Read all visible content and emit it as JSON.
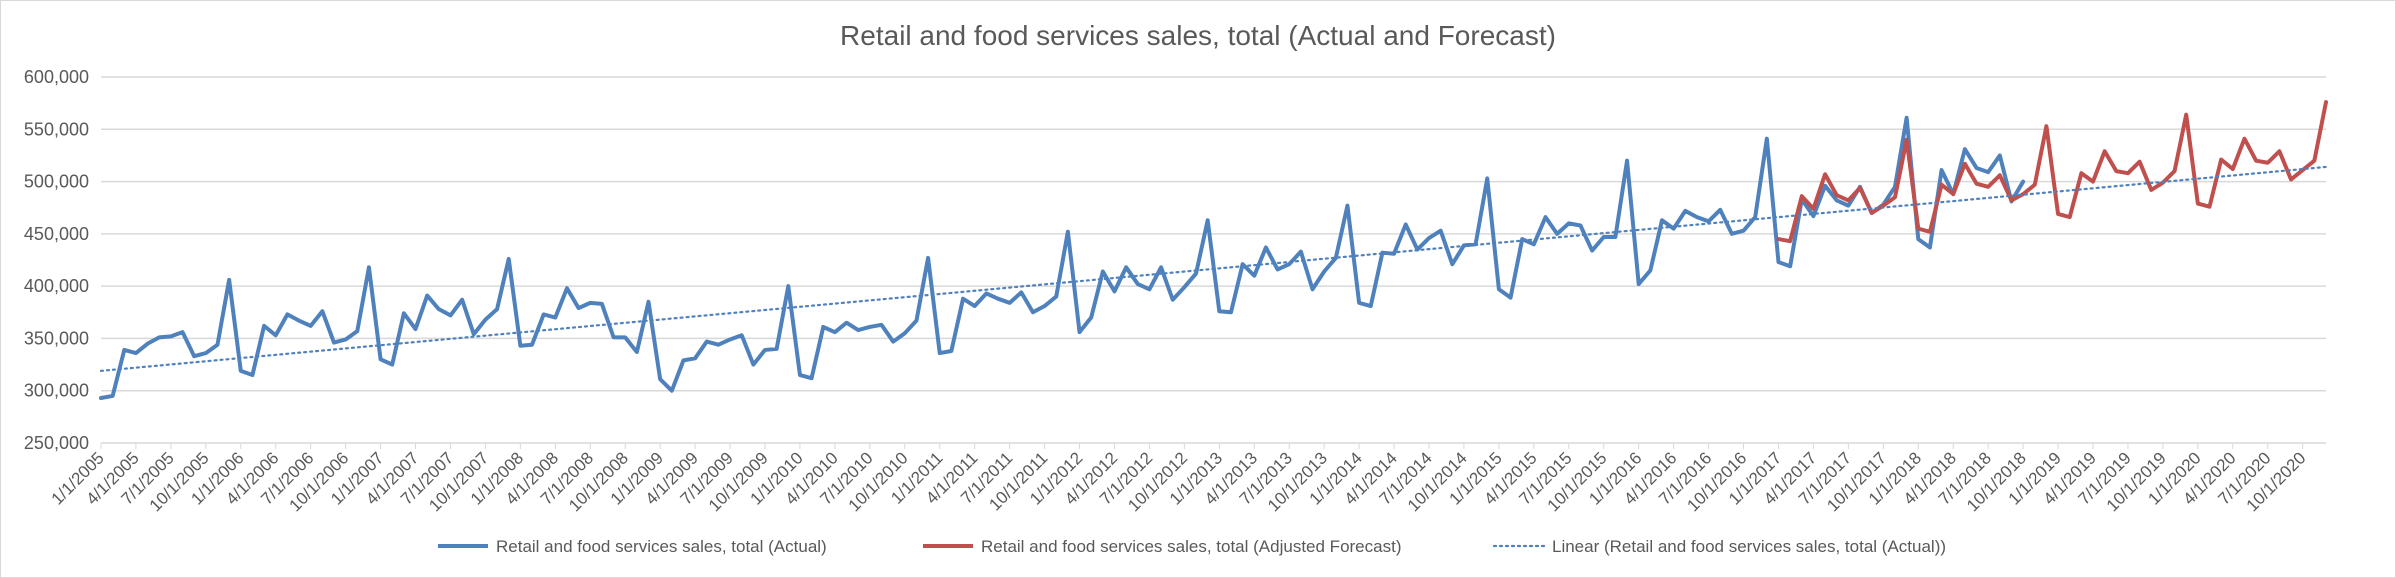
{
  "chart_data": {
    "type": "line",
    "title": "Retail and food services sales, total (Actual and Forecast)",
    "xlabel": "",
    "ylabel": "",
    "ylim": [
      250000,
      600000
    ],
    "yticks": [
      250000,
      300000,
      350000,
      400000,
      450000,
      500000,
      550000,
      600000
    ],
    "ytick_labels": [
      "250,000",
      "300,000",
      "350,000",
      "400,000",
      "450,000",
      "500,000",
      "550,000",
      "600,000"
    ],
    "x_start": "2005-01",
    "x_end": "2020-12",
    "xtick_labels": [
      "1/1/2005",
      "4/1/2005",
      "7/1/2005",
      "10/1/2005",
      "1/1/2006",
      "4/1/2006",
      "7/1/2006",
      "10/1/2006",
      "1/1/2007",
      "4/1/2007",
      "7/1/2007",
      "10/1/2007",
      "1/1/2008",
      "4/1/2008",
      "7/1/2008",
      "10/1/2008",
      "1/1/2009",
      "4/1/2009",
      "7/1/2009",
      "10/1/2009",
      "1/1/2010",
      "4/1/2010",
      "7/1/2010",
      "10/1/2010",
      "1/1/2011",
      "4/1/2011",
      "7/1/2011",
      "10/1/2011",
      "1/1/2012",
      "4/1/2012",
      "7/1/2012",
      "10/1/2012",
      "1/1/2013",
      "4/1/2013",
      "7/1/2013",
      "10/1/2013",
      "1/1/2014",
      "4/1/2014",
      "7/1/2014",
      "10/1/2014",
      "1/1/2015",
      "4/1/2015",
      "7/1/2015",
      "10/1/2015",
      "1/1/2016",
      "4/1/2016",
      "7/1/2016",
      "10/1/2016",
      "1/1/2017",
      "4/1/2017",
      "7/1/2017",
      "10/1/2017",
      "1/1/2018",
      "4/1/2018",
      "7/1/2018",
      "10/1/2018",
      "1/1/2019",
      "4/1/2019",
      "7/1/2019",
      "10/1/2019",
      "1/1/2020",
      "4/1/2020",
      "7/1/2020",
      "10/1/2020"
    ],
    "grid": true,
    "legend_position": "bottom",
    "series": [
      {
        "name": "Retail and food services sales, total (Actual)",
        "color": "#4f81bd",
        "style": "solid",
        "start": "2005-01",
        "values": [
          293000,
          295000,
          339000,
          336000,
          345000,
          351000,
          352000,
          356000,
          333000,
          336000,
          344000,
          406000,
          319000,
          315000,
          362000,
          353000,
          373000,
          367000,
          362000,
          376000,
          346000,
          349000,
          357000,
          418000,
          330000,
          325000,
          374000,
          359000,
          391000,
          378000,
          372000,
          387000,
          354000,
          368000,
          378000,
          426000,
          343000,
          344000,
          373000,
          370000,
          398000,
          379000,
          384000,
          383000,
          351000,
          351000,
          337000,
          385000,
          311000,
          300000,
          329000,
          331000,
          347000,
          344000,
          349000,
          353000,
          325000,
          339000,
          340000,
          400000,
          315000,
          312000,
          361000,
          356000,
          365000,
          358000,
          361000,
          363000,
          347000,
          355000,
          367000,
          427000,
          336000,
          338000,
          388000,
          381000,
          393000,
          388000,
          384000,
          394000,
          375000,
          381000,
          390000,
          452000,
          356000,
          370000,
          414000,
          395000,
          418000,
          402000,
          397000,
          418000,
          387000,
          399000,
          412000,
          463000,
          376000,
          375000,
          421000,
          410000,
          437000,
          416000,
          421000,
          433000,
          397000,
          414000,
          427000,
          477000,
          384000,
          381000,
          432000,
          431000,
          459000,
          435000,
          446000,
          453000,
          421000,
          439000,
          440000,
          503000,
          397000,
          389000,
          445000,
          440000,
          466000,
          450000,
          460000,
          458000,
          434000,
          447000,
          447000,
          520000,
          402000,
          415000,
          463000,
          455000,
          472000,
          466000,
          462000,
          473000,
          450000,
          453000,
          466000,
          541000,
          423000,
          419000,
          483000,
          467000,
          496000,
          482000,
          477000,
          495000,
          470000,
          478000,
          495000,
          561000,
          445000,
          437000,
          511000,
          488000,
          531000,
          513000,
          509000,
          525000,
          481000,
          500000
        ]
      },
      {
        "name": "Retail and food services sales, total (Adjusted Forecast)",
        "color": "#c0504d",
        "style": "solid",
        "start": "2017-01",
        "values": [
          445000,
          443000,
          486000,
          474000,
          507000,
          487000,
          482000,
          494000,
          470000,
          477000,
          485000,
          540000,
          455000,
          452000,
          497000,
          488000,
          517000,
          498000,
          495000,
          506000,
          482000,
          488000,
          497000,
          553000,
          469000,
          466000,
          508000,
          500000,
          529000,
          510000,
          508000,
          519000,
          492000,
          499000,
          510000,
          564000,
          479000,
          476000,
          521000,
          512000,
          541000,
          520000,
          518000,
          529000,
          502000,
          511000,
          520000,
          576000
        ]
      },
      {
        "name": "Linear (Retail and food services sales, total (Actual))",
        "color": "#4f81bd",
        "style": "dotted",
        "start": "2005-01",
        "trend_start_value": 319000,
        "trend_end_value": 514000
      }
    ]
  }
}
